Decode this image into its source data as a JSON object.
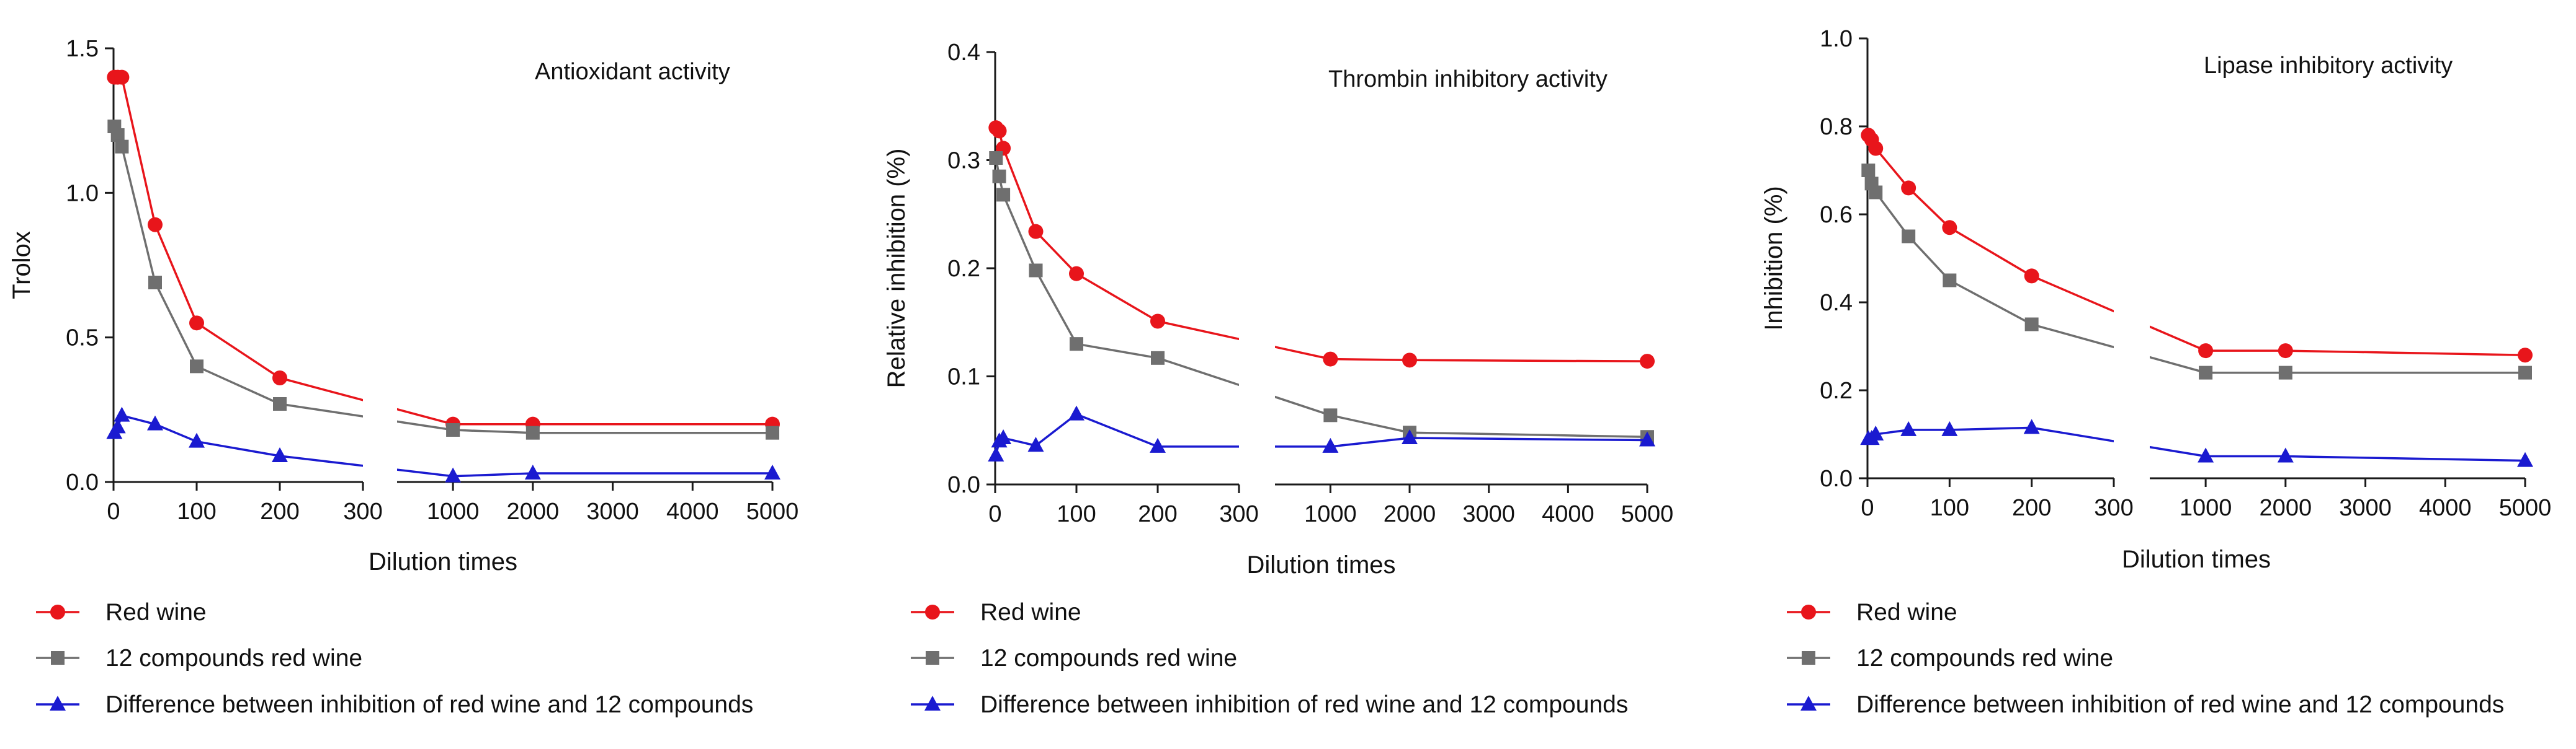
{
  "chart_data": [
    {
      "type": "line",
      "title": "Antioxidant activity",
      "xlabel": "Dilution times",
      "ylabel": "Trolox",
      "ylim": [
        0,
        1.5
      ],
      "yticks": [
        "0.0",
        "0.5",
        "1.0",
        "1.5"
      ],
      "x_segments": [
        [
          0,
          300
        ],
        [
          300,
          5000
        ]
      ],
      "xticks": [
        "0",
        "100",
        "200",
        "300",
        "1000",
        "2000",
        "3000",
        "4000",
        "5000"
      ],
      "series": [
        {
          "name": "Red wine",
          "color": "#e8151b",
          "marker": "circle",
          "x": [
            1,
            5,
            10,
            50,
            100,
            200,
            1000,
            2000,
            5000
          ],
          "y": [
            1.4,
            1.4,
            1.4,
            0.89,
            0.55,
            0.36,
            0.2,
            0.2,
            0.2
          ]
        },
        {
          "name": "12 compounds red wine",
          "color": "#6f6f6f",
          "marker": "square",
          "x": [
            1,
            5,
            10,
            50,
            100,
            200,
            1000,
            2000,
            5000
          ],
          "y": [
            1.23,
            1.2,
            1.16,
            0.69,
            0.4,
            0.27,
            0.18,
            0.17,
            0.17
          ]
        },
        {
          "name": "Difference between inhibition of red wine and 12 compounds",
          "color": "#1a1ad0",
          "marker": "triangle",
          "x": [
            1,
            5,
            10,
            50,
            100,
            200,
            1000,
            2000,
            5000
          ],
          "y": [
            0.17,
            0.19,
            0.23,
            0.2,
            0.14,
            0.09,
            0.02,
            0.03,
            0.03
          ]
        }
      ]
    },
    {
      "type": "line",
      "title": "Thrombin inhibitory activity",
      "xlabel": "Dilution times",
      "ylabel": "Relative inhibition (%)",
      "ylim": [
        0,
        0.4
      ],
      "yticks": [
        "0.0",
        "0.1",
        "0.2",
        "0.3",
        "0.4"
      ],
      "x_segments": [
        [
          0,
          300
        ],
        [
          300,
          5000
        ]
      ],
      "xticks": [
        "0",
        "100",
        "200",
        "300",
        "1000",
        "2000",
        "3000",
        "4000",
        "5000"
      ],
      "series": [
        {
          "name": "Red wine",
          "color": "#e8151b",
          "marker": "circle",
          "x": [
            1,
            5,
            10,
            50,
            100,
            200,
            1000,
            2000,
            5000
          ],
          "y": [
            0.33,
            0.327,
            0.311,
            0.234,
            0.195,
            0.151,
            0.116,
            0.115,
            0.114
          ]
        },
        {
          "name": "12 compounds red wine",
          "color": "#6f6f6f",
          "marker": "square",
          "x": [
            1,
            5,
            10,
            50,
            100,
            200,
            1000,
            2000,
            5000
          ],
          "y": [
            0.302,
            0.285,
            0.268,
            0.198,
            0.13,
            0.117,
            0.064,
            0.048,
            0.044
          ]
        },
        {
          "name": "Difference between inhibition of red wine and 12 compounds",
          "color": "#1a1ad0",
          "marker": "triangle",
          "x": [
            1,
            5,
            10,
            50,
            100,
            200,
            1000,
            2000,
            5000
          ],
          "y": [
            0.027,
            0.04,
            0.043,
            0.036,
            0.065,
            0.035,
            0.035,
            0.043,
            0.041
          ]
        }
      ]
    },
    {
      "type": "line",
      "title": "Lipase inhibitory activity",
      "xlabel": "Dilution times",
      "ylabel": "Inhibition (%)",
      "ylim": [
        0,
        1.0
      ],
      "yticks": [
        "0.0",
        "0.2",
        "0.4",
        "0.6",
        "0.8",
        "1.0"
      ],
      "x_segments": [
        [
          0,
          300
        ],
        [
          300,
          5000
        ]
      ],
      "xticks": [
        "0",
        "100",
        "200",
        "300",
        "1000",
        "2000",
        "3000",
        "4000",
        "5000"
      ],
      "series": [
        {
          "name": "Red wine",
          "color": "#e8151b",
          "marker": "circle",
          "x": [
            1,
            5,
            10,
            50,
            100,
            200,
            1000,
            2000,
            5000
          ],
          "y": [
            0.78,
            0.77,
            0.75,
            0.66,
            0.57,
            0.46,
            0.29,
            0.29,
            0.28
          ]
        },
        {
          "name": "12 compounds red wine",
          "color": "#6f6f6f",
          "marker": "square",
          "x": [
            1,
            5,
            10,
            50,
            100,
            200,
            1000,
            2000,
            5000
          ],
          "y": [
            0.7,
            0.67,
            0.65,
            0.55,
            0.45,
            0.35,
            0.24,
            0.24,
            0.24
          ]
        },
        {
          "name": "Difference between inhibition of red wine and 12 compounds",
          "color": "#1a1ad0",
          "marker": "triangle",
          "x": [
            1,
            5,
            10,
            50,
            100,
            200,
            1000,
            2000,
            5000
          ],
          "y": [
            0.09,
            0.09,
            0.1,
            0.11,
            0.11,
            0.115,
            0.05,
            0.05,
            0.04
          ]
        }
      ]
    }
  ]
}
